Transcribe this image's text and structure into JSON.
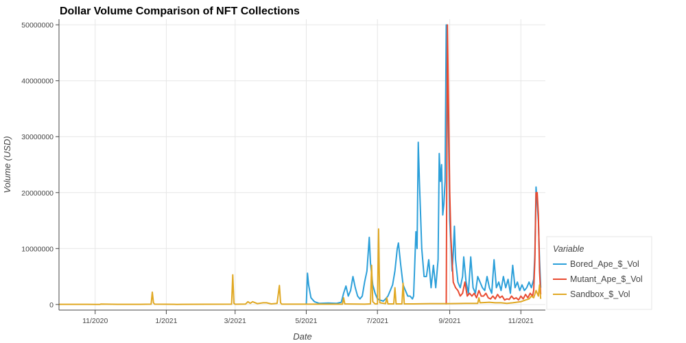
{
  "chart_data": {
    "type": "line",
    "title": "Dollar Volume Comparison of NFT Collections",
    "xlabel": "Date",
    "ylabel": "Volume (USD)",
    "x_range": [
      "2020-10-01",
      "2021-11-22"
    ],
    "ylim": [
      -1000000,
      51000000
    ],
    "x_ticks": [
      {
        "date": "2020-11-01",
        "label": "11/2020"
      },
      {
        "date": "2021-01-01",
        "label": "1/2021"
      },
      {
        "date": "2021-03-01",
        "label": "3/2021"
      },
      {
        "date": "2021-05-01",
        "label": "5/2021"
      },
      {
        "date": "2021-07-01",
        "label": "7/2021"
      },
      {
        "date": "2021-09-01",
        "label": "9/2021"
      },
      {
        "date": "2021-11-01",
        "label": "11/2021"
      }
    ],
    "y_ticks": [
      {
        "value": 0,
        "label": "0"
      },
      {
        "value": 10000000,
        "label": "10000000"
      },
      {
        "value": 20000000,
        "label": "20000000"
      },
      {
        "value": 30000000,
        "label": "30000000"
      },
      {
        "value": 40000000,
        "label": "40000000"
      },
      {
        "value": 50000000,
        "label": "50000000"
      }
    ],
    "grid": true,
    "legend": {
      "title": "Variable",
      "placement": "right"
    },
    "colors": {
      "grid": "#e6e6e6",
      "axis": "#444444"
    },
    "series": [
      {
        "name": "Bored_Ape_$_Vol",
        "color": "#2b9fd9",
        "points": [
          [
            "2021-05-01",
            0
          ],
          [
            "2021-05-02",
            5600000
          ],
          [
            "2021-05-03",
            3500000
          ],
          [
            "2021-05-05",
            1200000
          ],
          [
            "2021-05-08",
            500000
          ],
          [
            "2021-05-12",
            200000
          ],
          [
            "2021-05-20",
            250000
          ],
          [
            "2021-05-27",
            200000
          ],
          [
            "2021-05-31",
            400000
          ],
          [
            "2021-06-02",
            2000000
          ],
          [
            "2021-06-04",
            3300000
          ],
          [
            "2021-06-06",
            1500000
          ],
          [
            "2021-06-08",
            2500000
          ],
          [
            "2021-06-10",
            5000000
          ],
          [
            "2021-06-12",
            3000000
          ],
          [
            "2021-06-14",
            1500000
          ],
          [
            "2021-06-16",
            1000000
          ],
          [
            "2021-06-18",
            1500000
          ],
          [
            "2021-06-20",
            4000000
          ],
          [
            "2021-06-22",
            6000000
          ],
          [
            "2021-06-24",
            12000000
          ],
          [
            "2021-06-25",
            7500000
          ],
          [
            "2021-06-27",
            3500000
          ],
          [
            "2021-06-29",
            2000000
          ],
          [
            "2021-07-01",
            1000000
          ],
          [
            "2021-07-03",
            800000
          ],
          [
            "2021-07-06",
            600000
          ],
          [
            "2021-07-08",
            1000000
          ],
          [
            "2021-07-10",
            1500000
          ],
          [
            "2021-07-12",
            2500000
          ],
          [
            "2021-07-14",
            3500000
          ],
          [
            "2021-07-16",
            6000000
          ],
          [
            "2021-07-18",
            10000000
          ],
          [
            "2021-07-19",
            11000000
          ],
          [
            "2021-07-21",
            7000000
          ],
          [
            "2021-07-23",
            3500000
          ],
          [
            "2021-07-25",
            2500000
          ],
          [
            "2021-07-27",
            1500000
          ],
          [
            "2021-07-29",
            1500000
          ],
          [
            "2021-07-31",
            1000000
          ],
          [
            "2021-08-01",
            1500000
          ],
          [
            "2021-08-03",
            13000000
          ],
          [
            "2021-08-04",
            10000000
          ],
          [
            "2021-08-05",
            29000000
          ],
          [
            "2021-08-06",
            22000000
          ],
          [
            "2021-08-08",
            10000000
          ],
          [
            "2021-08-10",
            5000000
          ],
          [
            "2021-08-12",
            5000000
          ],
          [
            "2021-08-14",
            8000000
          ],
          [
            "2021-08-16",
            3000000
          ],
          [
            "2021-08-18",
            7000000
          ],
          [
            "2021-08-20",
            3000000
          ],
          [
            "2021-08-22",
            8000000
          ],
          [
            "2021-08-23",
            27000000
          ],
          [
            "2021-08-24",
            22000000
          ],
          [
            "2021-08-25",
            25000000
          ],
          [
            "2021-08-26",
            16000000
          ],
          [
            "2021-08-27",
            18000000
          ],
          [
            "2021-08-28",
            22000000
          ],
          [
            "2021-08-29",
            50000000
          ],
          [
            "2021-08-30",
            45000000
          ],
          [
            "2021-08-31",
            30000000
          ],
          [
            "2021-09-01",
            15000000
          ],
          [
            "2021-09-02",
            11000000
          ],
          [
            "2021-09-03",
            6000000
          ],
          [
            "2021-09-04",
            9000000
          ],
          [
            "2021-09-05",
            14000000
          ],
          [
            "2021-09-06",
            8000000
          ],
          [
            "2021-09-08",
            4000000
          ],
          [
            "2021-09-10",
            3000000
          ],
          [
            "2021-09-12",
            5000000
          ],
          [
            "2021-09-13",
            8500000
          ],
          [
            "2021-09-15",
            4000000
          ],
          [
            "2021-09-17",
            2000000
          ],
          [
            "2021-09-19",
            8500000
          ],
          [
            "2021-09-21",
            3000000
          ],
          [
            "2021-09-23",
            2000000
          ],
          [
            "2021-09-25",
            5000000
          ],
          [
            "2021-09-27",
            4000000
          ],
          [
            "2021-09-29",
            3000000
          ],
          [
            "2021-10-01",
            2500000
          ],
          [
            "2021-10-03",
            5000000
          ],
          [
            "2021-10-05",
            3000000
          ],
          [
            "2021-10-07",
            2000000
          ],
          [
            "2021-10-09",
            8000000
          ],
          [
            "2021-10-11",
            3000000
          ],
          [
            "2021-10-13",
            4000000
          ],
          [
            "2021-10-15",
            2500000
          ],
          [
            "2021-10-17",
            5000000
          ],
          [
            "2021-10-19",
            3000000
          ],
          [
            "2021-10-21",
            4500000
          ],
          [
            "2021-10-23",
            2000000
          ],
          [
            "2021-10-25",
            7000000
          ],
          [
            "2021-10-27",
            3000000
          ],
          [
            "2021-10-29",
            4000000
          ],
          [
            "2021-10-31",
            2500000
          ],
          [
            "2021-11-02",
            3500000
          ],
          [
            "2021-11-04",
            2500000
          ],
          [
            "2021-11-06",
            3000000
          ],
          [
            "2021-11-08",
            4000000
          ],
          [
            "2021-11-10",
            3000000
          ],
          [
            "2021-11-12",
            4500000
          ],
          [
            "2021-11-13",
            9000000
          ],
          [
            "2021-11-14",
            21000000
          ],
          [
            "2021-11-15",
            18000000
          ],
          [
            "2021-11-16",
            15000000
          ],
          [
            "2021-11-17",
            8000000
          ],
          [
            "2021-11-18",
            3000000
          ]
        ]
      },
      {
        "name": "Mutant_Ape_$_Vol",
        "color": "#e8492f",
        "points": [
          [
            "2021-08-29",
            0
          ],
          [
            "2021-08-30",
            50000000
          ],
          [
            "2021-08-31",
            35000000
          ],
          [
            "2021-09-01",
            20000000
          ],
          [
            "2021-09-02",
            12000000
          ],
          [
            "2021-09-03",
            8000000
          ],
          [
            "2021-09-04",
            4000000
          ],
          [
            "2021-09-06",
            3000000
          ],
          [
            "2021-09-08",
            2500000
          ],
          [
            "2021-09-10",
            1500000
          ],
          [
            "2021-09-12",
            2000000
          ],
          [
            "2021-09-14",
            4000000
          ],
          [
            "2021-09-16",
            1500000
          ],
          [
            "2021-09-18",
            2000000
          ],
          [
            "2021-09-20",
            1500000
          ],
          [
            "2021-09-22",
            2000000
          ],
          [
            "2021-09-24",
            1200000
          ],
          [
            "2021-09-26",
            2500000
          ],
          [
            "2021-09-28",
            1500000
          ],
          [
            "2021-09-30",
            1500000
          ],
          [
            "2021-10-02",
            2000000
          ],
          [
            "2021-10-04",
            1200000
          ],
          [
            "2021-10-06",
            1000000
          ],
          [
            "2021-10-08",
            1500000
          ],
          [
            "2021-10-10",
            1000000
          ],
          [
            "2021-10-12",
            1800000
          ],
          [
            "2021-10-14",
            1200000
          ],
          [
            "2021-10-16",
            1500000
          ],
          [
            "2021-10-18",
            800000
          ],
          [
            "2021-10-20",
            1000000
          ],
          [
            "2021-10-22",
            900000
          ],
          [
            "2021-10-24",
            1500000
          ],
          [
            "2021-10-26",
            1000000
          ],
          [
            "2021-10-28",
            1200000
          ],
          [
            "2021-10-30",
            800000
          ],
          [
            "2021-11-01",
            1500000
          ],
          [
            "2021-11-03",
            1000000
          ],
          [
            "2021-11-05",
            1800000
          ],
          [
            "2021-11-07",
            1200000
          ],
          [
            "2021-11-09",
            2000000
          ],
          [
            "2021-11-11",
            1500000
          ],
          [
            "2021-11-12",
            2500000
          ],
          [
            "2021-11-13",
            8000000
          ],
          [
            "2021-11-14",
            20000000
          ],
          [
            "2021-11-15",
            20000000
          ],
          [
            "2021-11-16",
            16000000
          ],
          [
            "2021-11-17",
            6000000
          ],
          [
            "2021-11-18",
            1800000
          ]
        ]
      },
      {
        "name": "Sandbox_$_Vol",
        "color": "#e0a823",
        "points": [
          [
            "2020-10-01",
            30000
          ],
          [
            "2020-11-01",
            20000
          ],
          [
            "2020-11-05",
            10000
          ],
          [
            "2020-11-06",
            80000
          ],
          [
            "2020-11-20",
            30000
          ],
          [
            "2020-12-10",
            30000
          ],
          [
            "2020-12-19",
            50000
          ],
          [
            "2020-12-20",
            2200000
          ],
          [
            "2020-12-21",
            300000
          ],
          [
            "2020-12-22",
            50000
          ],
          [
            "2021-01-10",
            20000
          ],
          [
            "2021-01-15",
            30000
          ],
          [
            "2021-02-26",
            50000
          ],
          [
            "2021-02-27",
            5300000
          ],
          [
            "2021-02-28",
            200000
          ],
          [
            "2021-03-01",
            40000
          ],
          [
            "2021-03-10",
            80000
          ],
          [
            "2021-03-12",
            500000
          ],
          [
            "2021-03-14",
            200000
          ],
          [
            "2021-03-16",
            500000
          ],
          [
            "2021-03-20",
            150000
          ],
          [
            "2021-03-25",
            300000
          ],
          [
            "2021-03-28",
            300000
          ],
          [
            "2021-04-01",
            100000
          ],
          [
            "2021-04-06",
            200000
          ],
          [
            "2021-04-08",
            3400000
          ],
          [
            "2021-04-09",
            300000
          ],
          [
            "2021-04-10",
            50000
          ],
          [
            "2021-05-01",
            50000
          ],
          [
            "2021-05-20",
            50000
          ],
          [
            "2021-06-01",
            50000
          ],
          [
            "2021-06-02",
            1200000
          ],
          [
            "2021-06-03",
            100000
          ],
          [
            "2021-06-20",
            50000
          ],
          [
            "2021-06-25",
            100000
          ],
          [
            "2021-06-26",
            7000000
          ],
          [
            "2021-06-27",
            500000
          ],
          [
            "2021-06-29",
            100000
          ],
          [
            "2021-07-01",
            100000
          ],
          [
            "2021-07-02",
            13500000
          ],
          [
            "2021-07-03",
            300000
          ],
          [
            "2021-07-08",
            150000
          ],
          [
            "2021-07-09",
            1200000
          ],
          [
            "2021-07-10",
            100000
          ],
          [
            "2021-07-15",
            100000
          ],
          [
            "2021-07-16",
            3000000
          ],
          [
            "2021-07-17",
            100000
          ],
          [
            "2021-07-22",
            100000
          ],
          [
            "2021-07-23",
            3800000
          ],
          [
            "2021-07-24",
            100000
          ],
          [
            "2021-08-01",
            100000
          ],
          [
            "2021-08-15",
            150000
          ],
          [
            "2021-09-01",
            150000
          ],
          [
            "2021-09-15",
            200000
          ],
          [
            "2021-09-25",
            200000
          ],
          [
            "2021-09-26",
            1200000
          ],
          [
            "2021-09-27",
            300000
          ],
          [
            "2021-10-05",
            400000
          ],
          [
            "2021-10-10",
            300000
          ],
          [
            "2021-10-15",
            300000
          ],
          [
            "2021-10-20",
            200000
          ],
          [
            "2021-10-25",
            300000
          ],
          [
            "2021-11-01",
            500000
          ],
          [
            "2021-11-05",
            800000
          ],
          [
            "2021-11-08",
            1000000
          ],
          [
            "2021-11-10",
            1500000
          ],
          [
            "2021-11-12",
            1200000
          ],
          [
            "2021-11-14",
            2500000
          ],
          [
            "2021-11-16",
            1500000
          ],
          [
            "2021-11-17",
            3500000
          ],
          [
            "2021-11-18",
            1000000
          ]
        ]
      }
    ]
  }
}
